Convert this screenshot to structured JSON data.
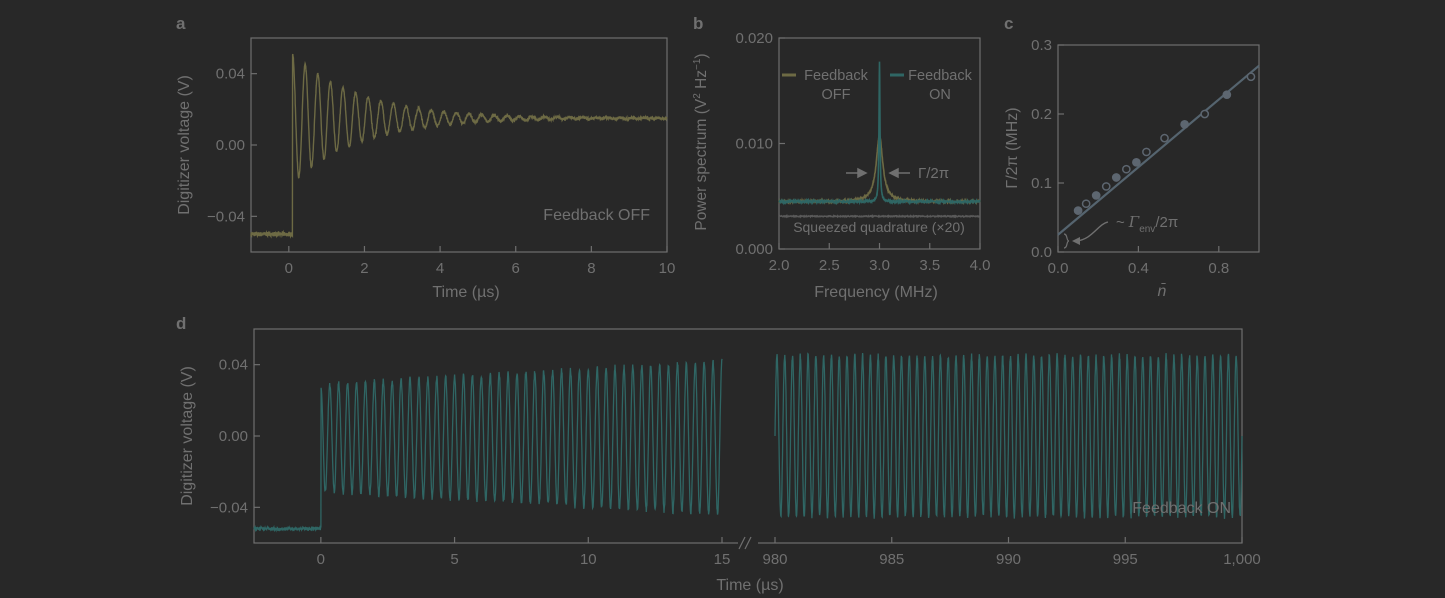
{
  "colors": {
    "background": "#282828",
    "frame": "#6f6f6f",
    "text": "#707070",
    "olive": "#6d6a44",
    "teal": "#2f6664",
    "gray": "#595959",
    "fit": "#55646f",
    "marker": "#5d6670"
  },
  "chart_data": [
    {
      "panel": "a",
      "type": "line",
      "xlabel": "Time (µs)",
      "ylabel": "Digitizer voltage (V)",
      "xlim": [
        -1,
        10
      ],
      "ylim": [
        -0.06,
        0.06
      ],
      "xticks": [
        0,
        2,
        4,
        6,
        8,
        10
      ],
      "xtick_labels": [
        "0",
        "2",
        "4",
        "6",
        "8",
        "10"
      ],
      "yticks": [
        -0.04,
        0,
        0.04
      ],
      "ytick_labels": [
        "−0.04",
        "0.00",
        "0.04"
      ],
      "annotation": "Feedback OFF",
      "series": [
        {
          "color": "olive",
          "model": "ringdown",
          "step_time_us": 0.1,
          "baseline_V": -0.05,
          "steady_V": 0.015,
          "initial_amplitude_V": 0.036,
          "decay_time_us": 1.8,
          "frequency_MHz": 3.0
        }
      ]
    },
    {
      "panel": "b",
      "type": "line",
      "xlabel": "Frequency (MHz)",
      "ylabel_main": "Power spectrum (V",
      "ylabel_sup1": "2",
      "ylabel_mid": " Hz",
      "ylabel_sup2": "−1",
      "ylabel_end": ")",
      "xlim": [
        2.0,
        4.0
      ],
      "ylim": [
        0,
        0.02
      ],
      "xticks": [
        2.0,
        2.5,
        3.0,
        3.5,
        4.0
      ],
      "xtick_labels": [
        "2.0",
        "2.5",
        "3.0",
        "3.5",
        "4.0"
      ],
      "yticks": [
        0,
        0.01,
        0.02
      ],
      "ytick_labels": [
        "0.000",
        "0.010",
        "0.020"
      ],
      "legend": [
        {
          "label_line1": "Feedback",
          "label_line2": "OFF",
          "color": "olive"
        },
        {
          "label_line1": "Feedback",
          "label_line2": "ON",
          "color": "teal"
        }
      ],
      "annotations": {
        "width": "Γ/2π",
        "squeezed": "Squeezed quadrature (×20)"
      },
      "series": [
        {
          "name": "Feedback OFF",
          "color": "olive",
          "center_MHz": 3.0,
          "background": 0.0045,
          "peak": 0.0107,
          "hwhm_MHz": 0.04
        },
        {
          "name": "Feedback ON",
          "color": "teal",
          "center_MHz": 3.0,
          "background": 0.0045,
          "peak": 0.0178,
          "hwhm_MHz": 0.006
        },
        {
          "name": "Squeezed quadrature (×20)",
          "color": "gray",
          "level": 0.0031
        }
      ]
    },
    {
      "panel": "c",
      "type": "scatter",
      "xlabel": "n̄",
      "ylabel": "Γ/2π (MHz)",
      "xlim": [
        0,
        1.0
      ],
      "ylim": [
        0,
        0.3
      ],
      "xticks": [
        0,
        0.4,
        0.8
      ],
      "xtick_labels": [
        "0.0",
        "0.4",
        "0.8"
      ],
      "yticks": [
        0,
        0.1,
        0.2,
        0.3
      ],
      "ytick_labels": [
        "0.0",
        "0.1",
        "0.2",
        "0.3"
      ],
      "annotation": {
        "tilde": "~",
        "symbol": "Γ",
        "sub": "env",
        "suffix": "/2π"
      },
      "fit": {
        "intercept": 0.025,
        "slope": 0.245
      },
      "points": {
        "x": [
          0.1,
          0.14,
          0.19,
          0.24,
          0.29,
          0.34,
          0.39,
          0.44,
          0.53,
          0.63,
          0.73,
          0.84,
          0.96
        ],
        "y": [
          0.06,
          0.07,
          0.082,
          0.095,
          0.108,
          0.12,
          0.13,
          0.145,
          0.165,
          0.185,
          0.2,
          0.228,
          0.254
        ],
        "open": [
          false,
          true,
          false,
          true,
          false,
          true,
          false,
          true,
          true,
          false,
          true,
          false,
          true
        ]
      }
    },
    {
      "panel": "d",
      "type": "line",
      "xlabel": "Time (µs)",
      "ylabel": "Digitizer voltage (V)",
      "ylim": [
        -0.06,
        0.06
      ],
      "x_segments": [
        {
          "xlim": [
            -2.5,
            15
          ]
        },
        {
          "xlim": [
            980,
            1000
          ]
        }
      ],
      "xticks_seg1": [
        0,
        5,
        10,
        15
      ],
      "xtick_labels_seg1": [
        "0",
        "5",
        "10",
        "15"
      ],
      "xticks_seg2": [
        980,
        985,
        990,
        995,
        1000
      ],
      "xtick_labels_seg2": [
        "980",
        "985",
        "990",
        "995",
        "1,000"
      ],
      "yticks": [
        -0.04,
        0,
        0.04
      ],
      "ytick_labels": [
        "−0.04",
        "0.00",
        "0.04"
      ],
      "annotation": "Feedback ON",
      "series": [
        {
          "color": "teal",
          "model": "sustained oscillation",
          "baseline_V": -0.052,
          "offset_V": -0.001,
          "amplitude_start_V": 0.03,
          "amplitude_end_V": 0.043,
          "steady_amplitude_V": 0.045,
          "frequency_MHz": 3.0
        }
      ]
    }
  ],
  "panel_labels": [
    "a",
    "b",
    "c",
    "d"
  ]
}
